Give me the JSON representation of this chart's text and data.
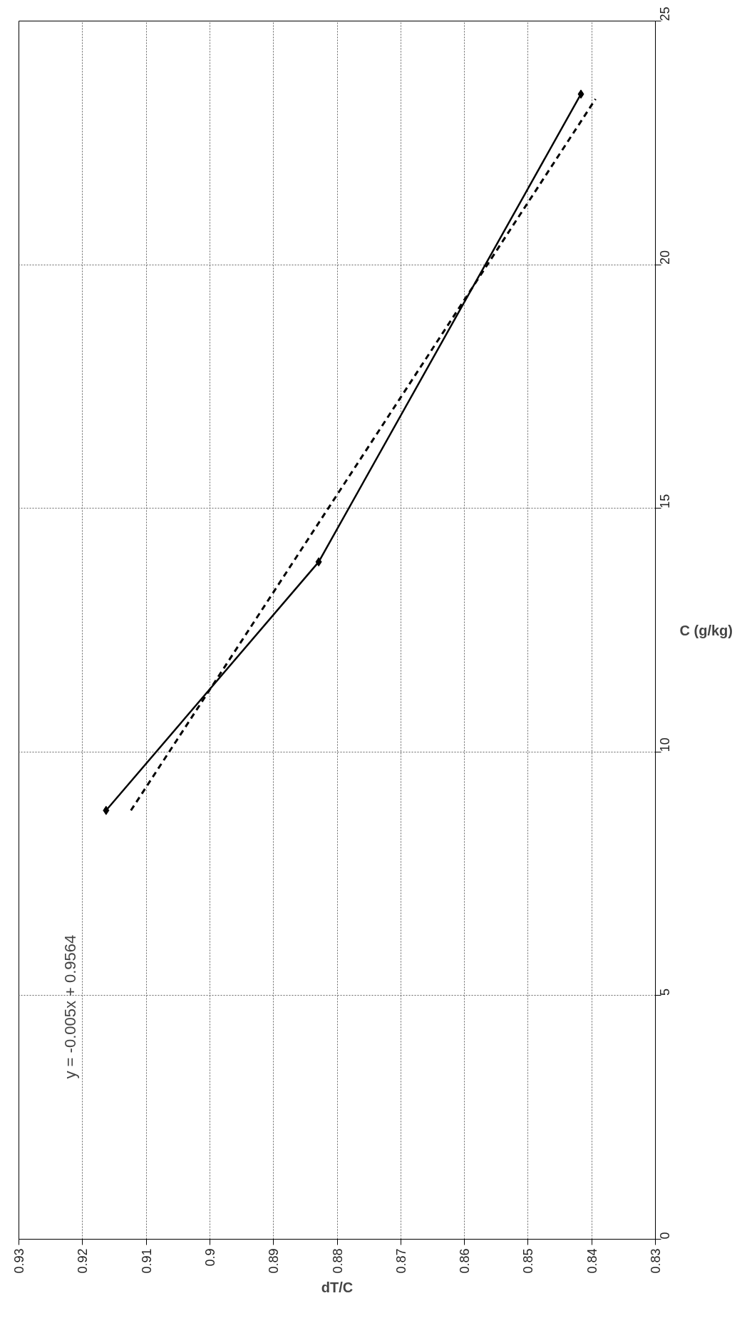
{
  "chart_data": {
    "type": "line",
    "xlabel": "dT/C",
    "ylabel": "C (g/kg)",
    "xlim": [
      0.93,
      0.83
    ],
    "xticks": [
      0.93,
      0.92,
      0.91,
      0.9,
      0.89,
      0.88,
      0.87,
      0.86,
      0.85,
      0.84,
      0.83
    ],
    "ylim": [
      0,
      25
    ],
    "yticks": [
      0,
      5,
      10,
      15,
      20,
      25
    ],
    "grid": true,
    "series": [
      {
        "type": "line",
        "color": "#000000",
        "marker": "diamond",
        "line_style": "solid",
        "x": [
          0.9163,
          0.8829,
          0.8417
        ],
        "values": [
          8.8,
          13.9,
          23.5
        ]
      },
      {
        "type": "line",
        "color": "#000000",
        "marker": "none",
        "line_style": "dashed",
        "x": [
          0.9124,
          0.8394
        ],
        "values": [
          8.8,
          23.4
        ]
      }
    ],
    "annotations": [
      "y = -0.005x + 0.9564"
    ]
  }
}
